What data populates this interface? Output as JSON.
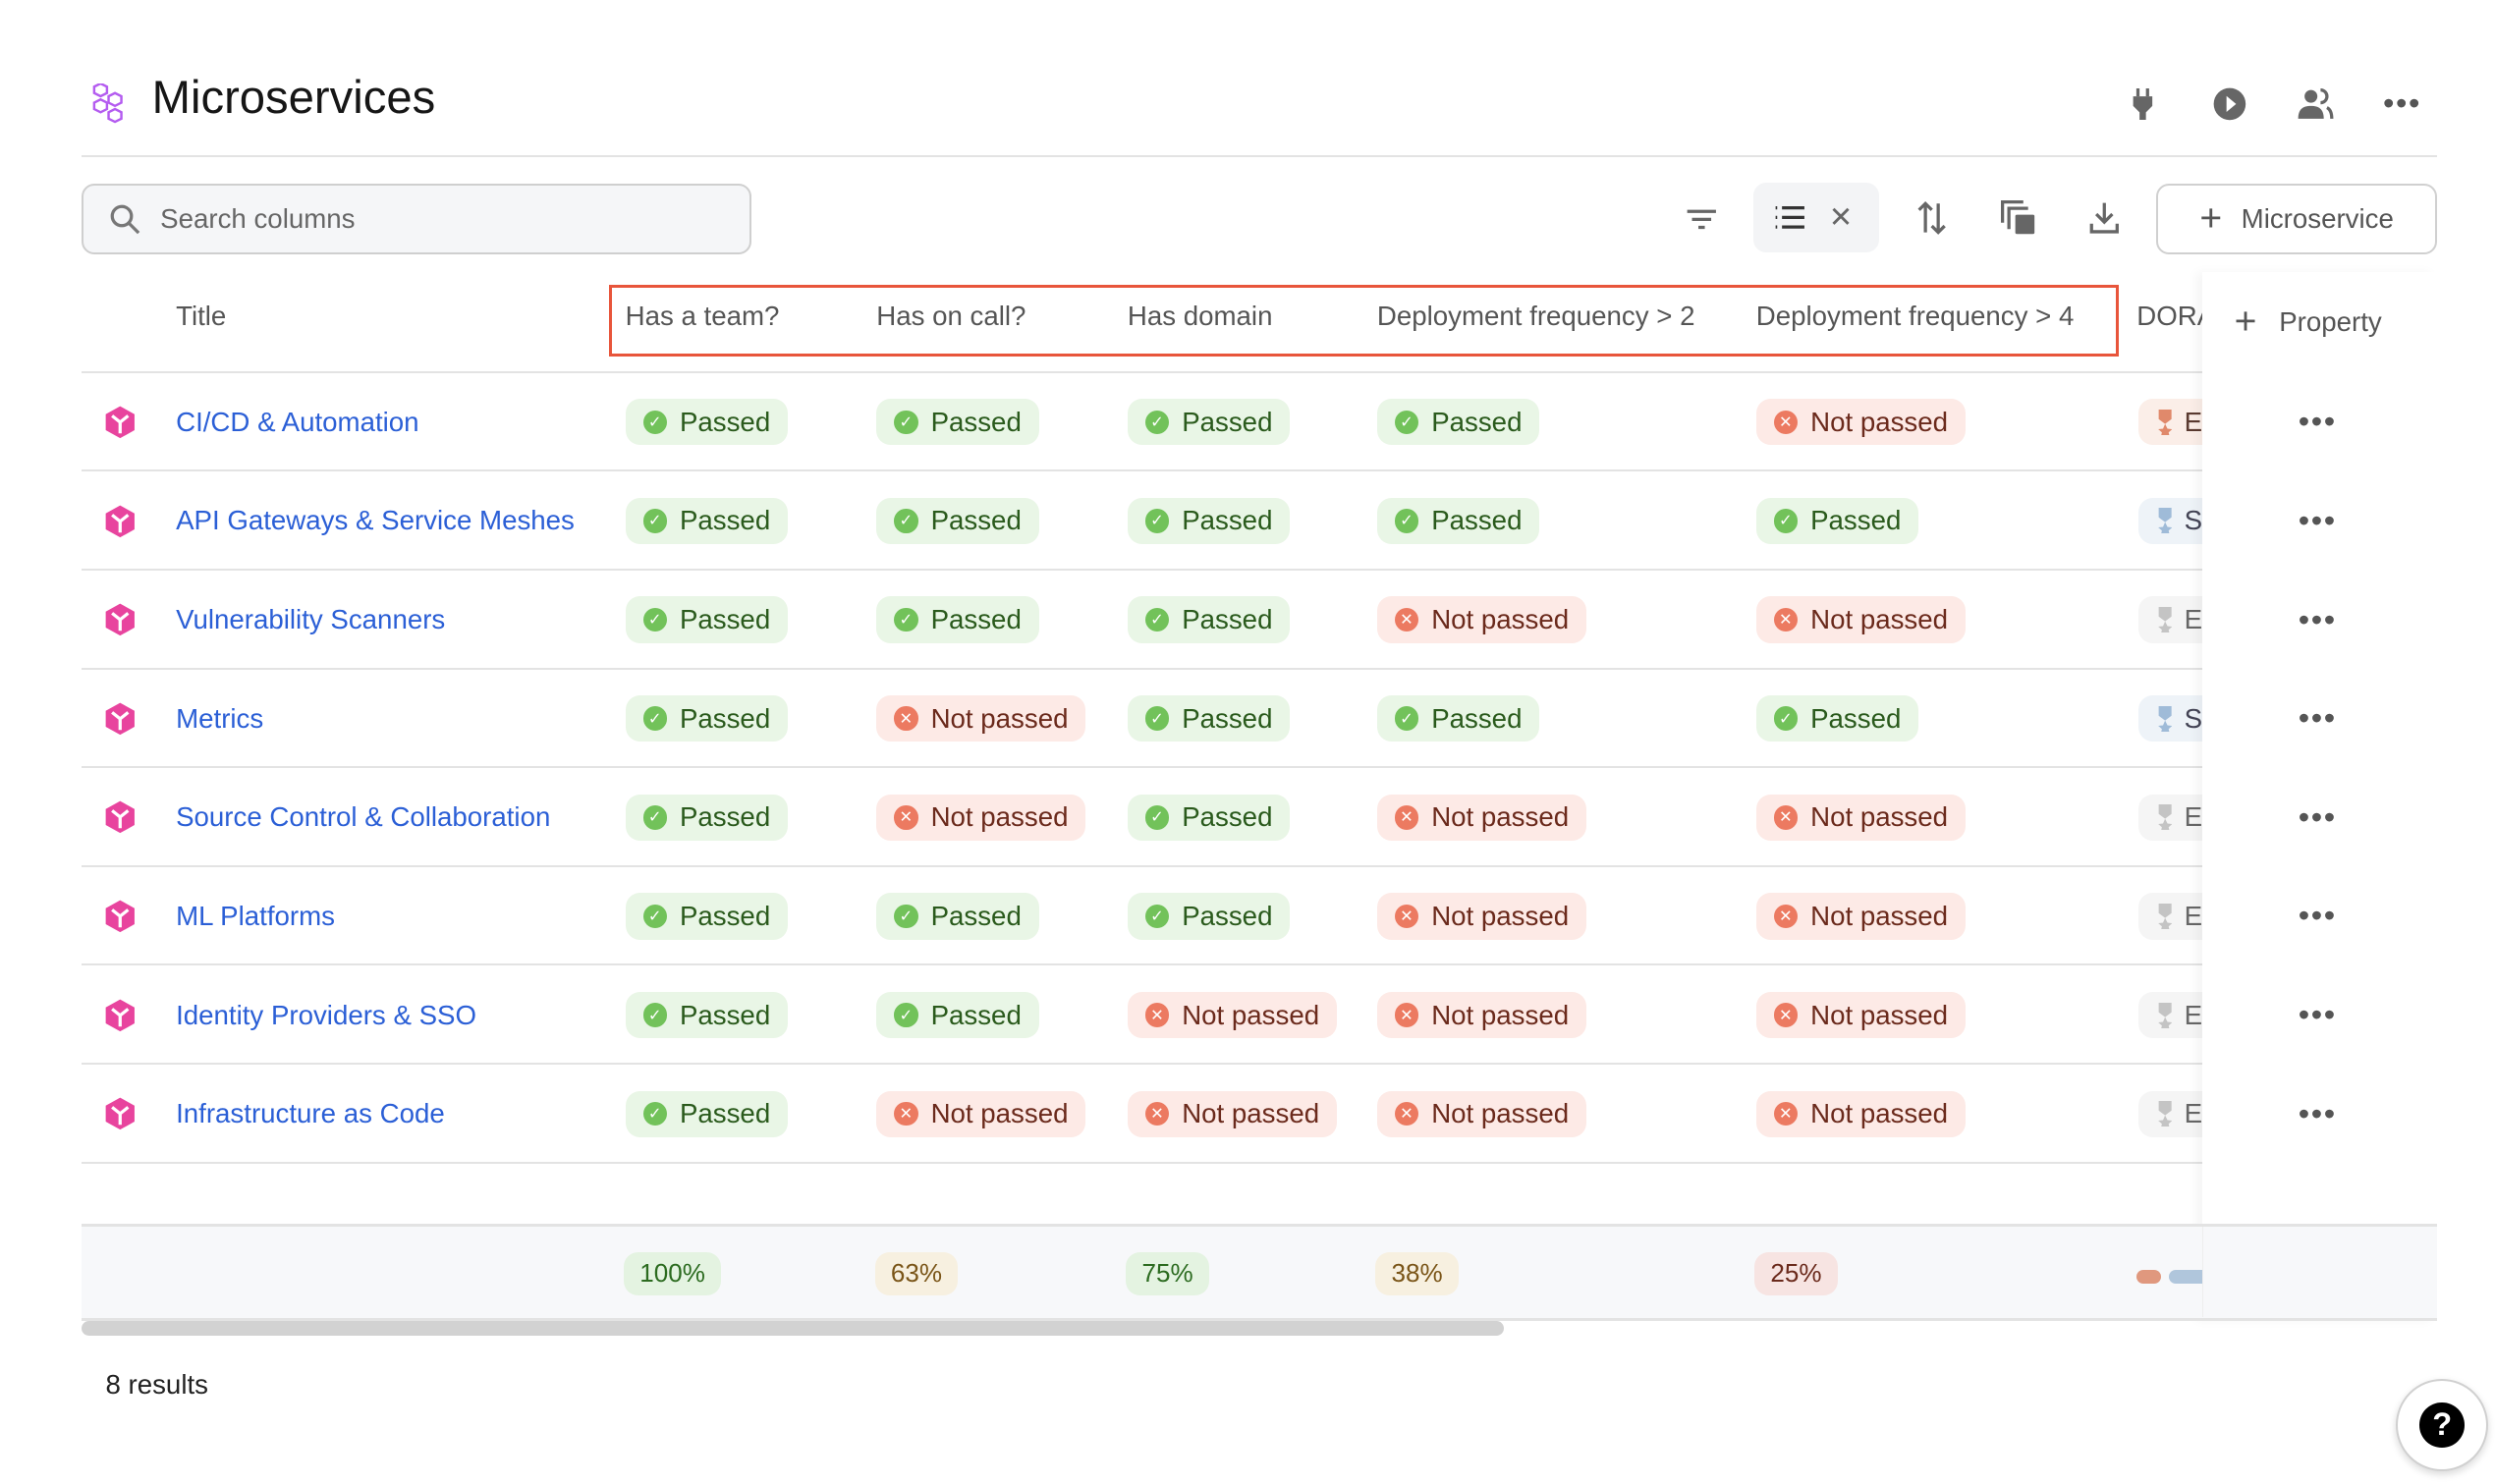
{
  "header": {
    "title": "Microservices",
    "icons": [
      "plug-icon",
      "play-icon",
      "users-icon",
      "more-icon"
    ]
  },
  "toolbar": {
    "search_placeholder": "Search columns",
    "add_button": "Microservice",
    "icons": [
      "filter-icon",
      "list-icon",
      "close-icon",
      "sort-icon",
      "copy-icon",
      "download-icon"
    ]
  },
  "columns": {
    "title": "Title",
    "c1": "Has a team?",
    "c2": "Has on call?",
    "c3": "Has domain",
    "c4": "Deployment frequency > 2",
    "c5": "Deployment frequency > 4",
    "c6": "DORA",
    "add_property": "Property"
  },
  "highlight_color": "#e8553b",
  "rows": [
    {
      "name": "CI/CD & Automation",
      "checks": [
        "Passed",
        "Passed",
        "Passed",
        "Passed",
        "Not passed"
      ],
      "dora": "E",
      "dora_color": "orange"
    },
    {
      "name": "API Gateways & Service Meshes",
      "checks": [
        "Passed",
        "Passed",
        "Passed",
        "Passed",
        "Passed"
      ],
      "dora": "S",
      "dora_color": "blue"
    },
    {
      "name": "Vulnerability Scanners",
      "checks": [
        "Passed",
        "Passed",
        "Passed",
        "Not passed",
        "Not passed"
      ],
      "dora": "E",
      "dora_color": "gray"
    },
    {
      "name": "Metrics",
      "checks": [
        "Passed",
        "Not passed",
        "Passed",
        "Passed",
        "Passed"
      ],
      "dora": "S",
      "dora_color": "blue"
    },
    {
      "name": "Source Control & Collaboration",
      "checks": [
        "Passed",
        "Not passed",
        "Passed",
        "Not passed",
        "Not passed"
      ],
      "dora": "E",
      "dora_color": "gray"
    },
    {
      "name": "ML Platforms",
      "checks": [
        "Passed",
        "Passed",
        "Passed",
        "Not passed",
        "Not passed"
      ],
      "dora": "E",
      "dora_color": "gray"
    },
    {
      "name": "Identity Providers & SSO",
      "checks": [
        "Passed",
        "Passed",
        "Not passed",
        "Not passed",
        "Not passed"
      ],
      "dora": "E",
      "dora_color": "gray"
    },
    {
      "name": "Infrastructure as Code",
      "checks": [
        "Passed",
        "Not passed",
        "Not passed",
        "Not passed",
        "Not passed"
      ],
      "dora": "E",
      "dora_color": "gray"
    }
  ],
  "footer": {
    "pcts": [
      "100%",
      "63%",
      "75%",
      "38%",
      "25%"
    ]
  },
  "results": "8 results"
}
